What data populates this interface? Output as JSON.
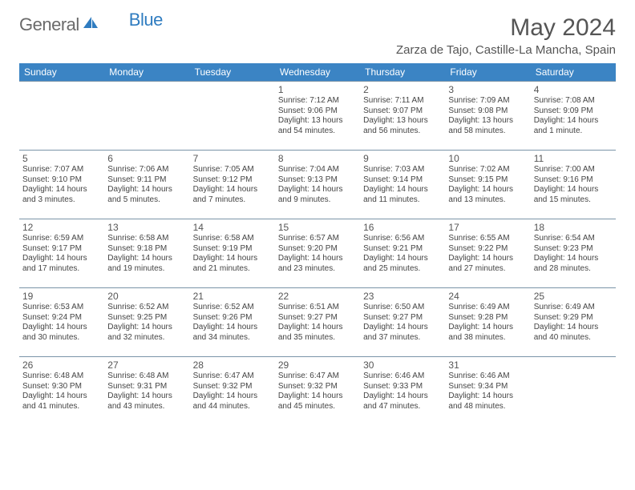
{
  "logo": {
    "general": "General",
    "blue": "Blue"
  },
  "title": "May 2024",
  "location": "Zarza de Tajo, Castille-La Mancha, Spain",
  "colors": {
    "header_bg": "#3b84c4",
    "header_text": "#ffffff",
    "border": "#7a94a8",
    "text": "#444444",
    "title_text": "#555555",
    "logo_gray": "#6a6a6a",
    "logo_blue": "#2f7cc0"
  },
  "weekdays": [
    "Sunday",
    "Monday",
    "Tuesday",
    "Wednesday",
    "Thursday",
    "Friday",
    "Saturday"
  ],
  "weeks": [
    [
      null,
      null,
      null,
      {
        "n": "1",
        "sr": "7:12 AM",
        "ss": "9:06 PM",
        "dl": "13 hours and 54 minutes."
      },
      {
        "n": "2",
        "sr": "7:11 AM",
        "ss": "9:07 PM",
        "dl": "13 hours and 56 minutes."
      },
      {
        "n": "3",
        "sr": "7:09 AM",
        "ss": "9:08 PM",
        "dl": "13 hours and 58 minutes."
      },
      {
        "n": "4",
        "sr": "7:08 AM",
        "ss": "9:09 PM",
        "dl": "14 hours and 1 minute."
      }
    ],
    [
      {
        "n": "5",
        "sr": "7:07 AM",
        "ss": "9:10 PM",
        "dl": "14 hours and 3 minutes."
      },
      {
        "n": "6",
        "sr": "7:06 AM",
        "ss": "9:11 PM",
        "dl": "14 hours and 5 minutes."
      },
      {
        "n": "7",
        "sr": "7:05 AM",
        "ss": "9:12 PM",
        "dl": "14 hours and 7 minutes."
      },
      {
        "n": "8",
        "sr": "7:04 AM",
        "ss": "9:13 PM",
        "dl": "14 hours and 9 minutes."
      },
      {
        "n": "9",
        "sr": "7:03 AM",
        "ss": "9:14 PM",
        "dl": "14 hours and 11 minutes."
      },
      {
        "n": "10",
        "sr": "7:02 AM",
        "ss": "9:15 PM",
        "dl": "14 hours and 13 minutes."
      },
      {
        "n": "11",
        "sr": "7:00 AM",
        "ss": "9:16 PM",
        "dl": "14 hours and 15 minutes."
      }
    ],
    [
      {
        "n": "12",
        "sr": "6:59 AM",
        "ss": "9:17 PM",
        "dl": "14 hours and 17 minutes."
      },
      {
        "n": "13",
        "sr": "6:58 AM",
        "ss": "9:18 PM",
        "dl": "14 hours and 19 minutes."
      },
      {
        "n": "14",
        "sr": "6:58 AM",
        "ss": "9:19 PM",
        "dl": "14 hours and 21 minutes."
      },
      {
        "n": "15",
        "sr": "6:57 AM",
        "ss": "9:20 PM",
        "dl": "14 hours and 23 minutes."
      },
      {
        "n": "16",
        "sr": "6:56 AM",
        "ss": "9:21 PM",
        "dl": "14 hours and 25 minutes."
      },
      {
        "n": "17",
        "sr": "6:55 AM",
        "ss": "9:22 PM",
        "dl": "14 hours and 27 minutes."
      },
      {
        "n": "18",
        "sr": "6:54 AM",
        "ss": "9:23 PM",
        "dl": "14 hours and 28 minutes."
      }
    ],
    [
      {
        "n": "19",
        "sr": "6:53 AM",
        "ss": "9:24 PM",
        "dl": "14 hours and 30 minutes."
      },
      {
        "n": "20",
        "sr": "6:52 AM",
        "ss": "9:25 PM",
        "dl": "14 hours and 32 minutes."
      },
      {
        "n": "21",
        "sr": "6:52 AM",
        "ss": "9:26 PM",
        "dl": "14 hours and 34 minutes."
      },
      {
        "n": "22",
        "sr": "6:51 AM",
        "ss": "9:27 PM",
        "dl": "14 hours and 35 minutes."
      },
      {
        "n": "23",
        "sr": "6:50 AM",
        "ss": "9:27 PM",
        "dl": "14 hours and 37 minutes."
      },
      {
        "n": "24",
        "sr": "6:49 AM",
        "ss": "9:28 PM",
        "dl": "14 hours and 38 minutes."
      },
      {
        "n": "25",
        "sr": "6:49 AM",
        "ss": "9:29 PM",
        "dl": "14 hours and 40 minutes."
      }
    ],
    [
      {
        "n": "26",
        "sr": "6:48 AM",
        "ss": "9:30 PM",
        "dl": "14 hours and 41 minutes."
      },
      {
        "n": "27",
        "sr": "6:48 AM",
        "ss": "9:31 PM",
        "dl": "14 hours and 43 minutes."
      },
      {
        "n": "28",
        "sr": "6:47 AM",
        "ss": "9:32 PM",
        "dl": "14 hours and 44 minutes."
      },
      {
        "n": "29",
        "sr": "6:47 AM",
        "ss": "9:32 PM",
        "dl": "14 hours and 45 minutes."
      },
      {
        "n": "30",
        "sr": "6:46 AM",
        "ss": "9:33 PM",
        "dl": "14 hours and 47 minutes."
      },
      {
        "n": "31",
        "sr": "6:46 AM",
        "ss": "9:34 PM",
        "dl": "14 hours and 48 minutes."
      },
      null
    ]
  ],
  "labels": {
    "sunrise": "Sunrise: ",
    "sunset": "Sunset: ",
    "daylight": "Daylight: "
  }
}
